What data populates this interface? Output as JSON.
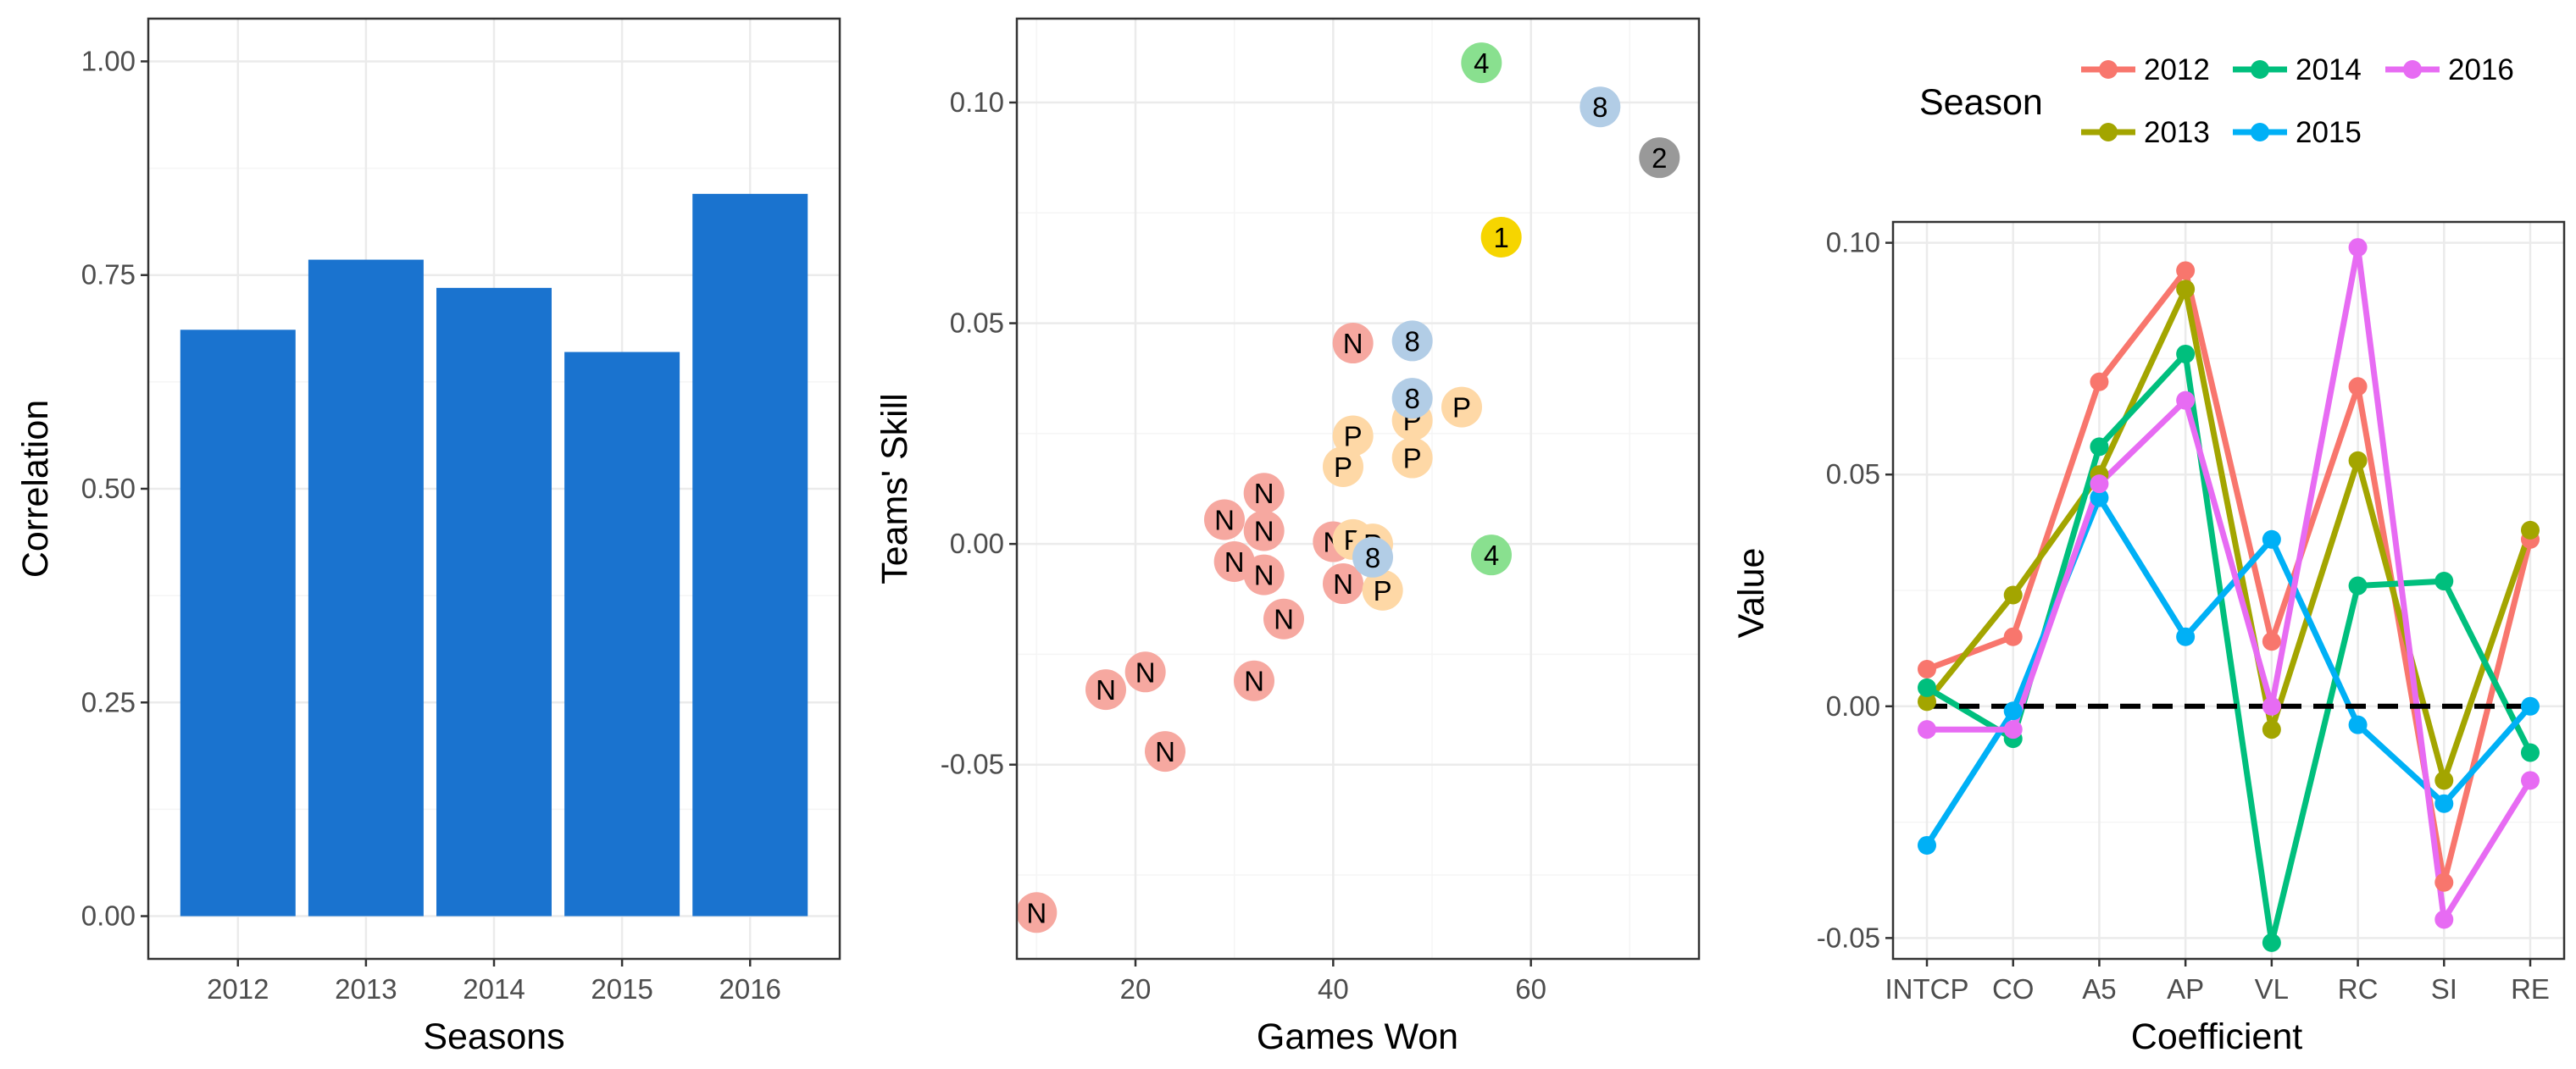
{
  "chart_data": [
    {
      "type": "bar",
      "title": "",
      "xlabel": "Seasons",
      "ylabel": "Correlation",
      "categories": [
        "2012",
        "2013",
        "2014",
        "2015",
        "2016"
      ],
      "values": [
        0.686,
        0.768,
        0.735,
        0.66,
        0.845
      ],
      "ylim": [
        -0.05,
        1.05
      ],
      "yticks": [
        0.0,
        0.25,
        0.5,
        0.75,
        1.0
      ],
      "ytick_labels": [
        "0.00",
        "0.25",
        "0.50",
        "0.75",
        "1.00"
      ],
      "bar_color": "#1a73cf",
      "grid": true
    },
    {
      "type": "scatter",
      "title": "",
      "xlabel": "Games Won",
      "ylabel": "Teams' Skill",
      "xlim": [
        8,
        77
      ],
      "ylim": [
        -0.094,
        0.119
      ],
      "xticks": [
        20,
        40,
        60
      ],
      "xtick_labels": [
        "20",
        "40",
        "60"
      ],
      "yticks": [
        -0.05,
        0.0,
        0.05,
        0.1
      ],
      "ytick_labels": [
        "-0.05",
        "0.00",
        "0.05",
        "0.10"
      ],
      "grid": true,
      "categories": [
        {
          "label": "1",
          "color": "#f6d500"
        },
        {
          "label": "2",
          "color": "#999999"
        },
        {
          "label": "4",
          "color": "#89e08f"
        },
        {
          "label": "8",
          "color": "#b2cde6"
        },
        {
          "label": "P",
          "color": "#fed8a6"
        },
        {
          "label": "N",
          "color": "#f6a8a0"
        }
      ],
      "points": [
        {
          "x": 10,
          "y": -0.0835,
          "label": "N"
        },
        {
          "x": 17,
          "y": -0.033,
          "label": "N"
        },
        {
          "x": 21,
          "y": -0.029,
          "label": "N"
        },
        {
          "x": 23,
          "y": -0.047,
          "label": "N"
        },
        {
          "x": 29,
          "y": 0.0055,
          "label": "N"
        },
        {
          "x": 30,
          "y": -0.004,
          "label": "N"
        },
        {
          "x": 32,
          "y": -0.031,
          "label": "N"
        },
        {
          "x": 33,
          "y": 0.0115,
          "label": "N"
        },
        {
          "x": 33,
          "y": 0.003,
          "label": "N"
        },
        {
          "x": 33,
          "y": -0.007,
          "label": "N"
        },
        {
          "x": 35,
          "y": -0.017,
          "label": "N"
        },
        {
          "x": 40,
          "y": 0.0005,
          "label": "N"
        },
        {
          "x": 41,
          "y": -0.009,
          "label": "N"
        },
        {
          "x": 42,
          "y": 0.0455,
          "label": "N"
        },
        {
          "x": 41,
          "y": 0.0175,
          "label": "P"
        },
        {
          "x": 42,
          "y": 0.0245,
          "label": "P"
        },
        {
          "x": 42,
          "y": 0.001,
          "label": "P"
        },
        {
          "x": 44,
          "y": 0.0,
          "label": "P"
        },
        {
          "x": 45,
          "y": -0.0105,
          "label": "P"
        },
        {
          "x": 48,
          "y": 0.028,
          "label": "P"
        },
        {
          "x": 48,
          "y": 0.0195,
          "label": "P"
        },
        {
          "x": 53,
          "y": 0.031,
          "label": "P"
        },
        {
          "x": 44,
          "y": -0.003,
          "label": "8"
        },
        {
          "x": 48,
          "y": 0.033,
          "label": "8"
        },
        {
          "x": 48,
          "y": 0.046,
          "label": "8"
        },
        {
          "x": 67,
          "y": 0.099,
          "label": "8"
        },
        {
          "x": 55,
          "y": 0.109,
          "label": "4"
        },
        {
          "x": 56,
          "y": -0.0025,
          "label": "4"
        },
        {
          "x": 57,
          "y": 0.0695,
          "label": "1"
        },
        {
          "x": 73,
          "y": 0.0875,
          "label": "2"
        }
      ]
    },
    {
      "type": "line",
      "title": "",
      "xlabel": "Coefficient",
      "ylabel": "Value",
      "categories": [
        "INTCP",
        "CO",
        "A5",
        "AP",
        "VL",
        "RC",
        "SI",
        "RE"
      ],
      "ylim": [
        -0.0545,
        0.1045
      ],
      "yticks": [
        -0.05,
        0.0,
        0.05,
        0.1
      ],
      "ytick_labels": [
        "-0.05",
        "0.00",
        "0.05",
        "0.10"
      ],
      "reference_line": {
        "y": 0.0,
        "style": "dashed",
        "color": "#000000"
      },
      "legend": {
        "title": "Season",
        "position": "top"
      },
      "grid": true,
      "series": [
        {
          "name": "2012",
          "color": "#f8766d",
          "values": [
            0.008,
            0.015,
            0.07,
            0.094,
            0.014,
            0.069,
            -0.038,
            0.036
          ]
        },
        {
          "name": "2013",
          "color": "#a3a500",
          "values": [
            0.001,
            0.024,
            0.05,
            0.09,
            -0.005,
            0.053,
            -0.016,
            0.038
          ]
        },
        {
          "name": "2014",
          "color": "#00bf7d",
          "values": [
            0.004,
            -0.007,
            0.056,
            0.076,
            -0.051,
            0.026,
            0.027,
            -0.01
          ]
        },
        {
          "name": "2015",
          "color": "#00b0f6",
          "values": [
            -0.03,
            -0.001,
            0.045,
            0.015,
            0.036,
            -0.004,
            -0.021,
            0.0
          ]
        },
        {
          "name": "2016",
          "color": "#e76bf3",
          "values": [
            -0.005,
            -0.005,
            0.048,
            0.066,
            0.0,
            0.099,
            -0.046,
            -0.016
          ]
        }
      ]
    }
  ]
}
